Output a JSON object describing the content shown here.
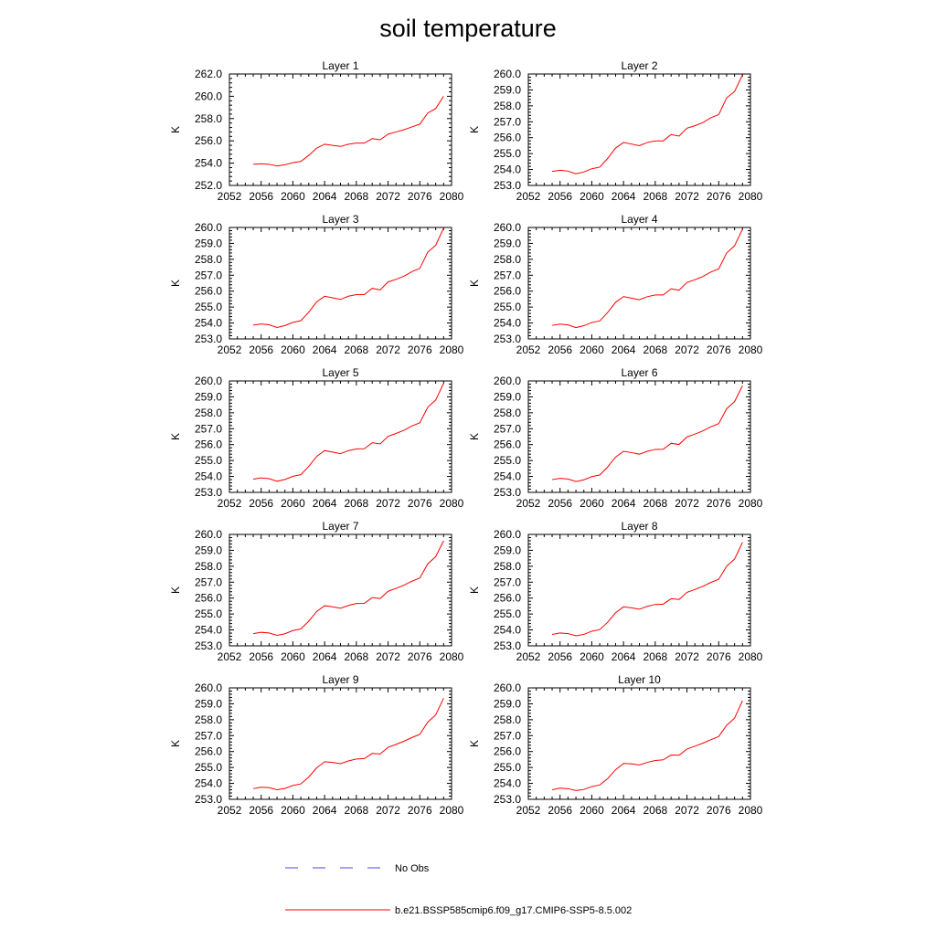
{
  "title": "soil temperature",
  "legend": [
    {
      "label": "No Obs",
      "color": "#4a4ad8",
      "style": "dashed"
    },
    {
      "label": "b.e21.BSSP585cmip6.f09_g17.CMIP6-SSP5-8.5.002",
      "color": "#ff0000",
      "style": "solid"
    }
  ],
  "chart_data": [
    {
      "type": "line",
      "title": "Layer 1",
      "ylabel": "K",
      "xlim": [
        2052,
        2080
      ],
      "ylim": [
        252,
        262
      ],
      "xticks": [
        "2052",
        "2056",
        "2060",
        "2064",
        "2068",
        "2072",
        "2076",
        "2080"
      ],
      "yticks": [
        "252.0",
        "254.0",
        "256.0",
        "258.0",
        "260.0",
        "262.0"
      ],
      "x": [
        2055,
        2056,
        2057,
        2058,
        2059,
        2060,
        2061,
        2062,
        2063,
        2064,
        2065,
        2066,
        2067,
        2068,
        2069,
        2070,
        2071,
        2072,
        2073,
        2074,
        2075,
        2076,
        2077,
        2078,
        2079
      ],
      "series": [
        {
          "name": "b.e21.BSSP585cmip6.f09_g17.CMIP6-SSP5-8.5.002",
          "values": [
            253.9,
            253.95,
            253.9,
            253.75,
            253.85,
            254.05,
            254.15,
            254.7,
            255.35,
            255.7,
            255.6,
            255.5,
            255.7,
            255.8,
            255.8,
            256.2,
            256.1,
            256.6,
            256.8,
            257.0,
            257.25,
            257.5,
            258.5,
            258.9,
            260.0
          ]
        }
      ]
    },
    {
      "type": "line",
      "title": "Layer 2",
      "ylabel": "K",
      "xlim": [
        2052,
        2080
      ],
      "ylim": [
        253,
        260
      ],
      "xticks": [
        "2052",
        "2056",
        "2060",
        "2064",
        "2068",
        "2072",
        "2076",
        "2080"
      ],
      "yticks": [
        "253.0",
        "254.0",
        "255.0",
        "256.0",
        "257.0",
        "258.0",
        "259.0",
        "260.0"
      ],
      "x": [
        2055,
        2056,
        2057,
        2058,
        2059,
        2060,
        2061,
        2062,
        2063,
        2064,
        2065,
        2066,
        2067,
        2068,
        2069,
        2070,
        2071,
        2072,
        2073,
        2074,
        2075,
        2076,
        2077,
        2078,
        2079
      ],
      "series": [
        {
          "name": "b.e21.BSSP585cmip6.f09_g17.CMIP6-SSP5-8.5.002",
          "values": [
            253.88,
            253.95,
            253.9,
            253.73,
            253.85,
            254.05,
            254.15,
            254.7,
            255.35,
            255.7,
            255.6,
            255.5,
            255.7,
            255.8,
            255.8,
            256.2,
            256.1,
            256.6,
            256.75,
            256.95,
            257.25,
            257.45,
            258.5,
            258.9,
            259.95
          ]
        }
      ]
    },
    {
      "type": "line",
      "title": "Layer 3",
      "ylabel": "K",
      "xlim": [
        2052,
        2080
      ],
      "ylim": [
        253,
        260
      ],
      "xticks": [
        "2052",
        "2056",
        "2060",
        "2064",
        "2068",
        "2072",
        "2076",
        "2080"
      ],
      "yticks": [
        "253.0",
        "254.0",
        "255.0",
        "256.0",
        "257.0",
        "258.0",
        "259.0",
        "260.0"
      ],
      "x": [
        2055,
        2056,
        2057,
        2058,
        2059,
        2060,
        2061,
        2062,
        2063,
        2064,
        2065,
        2066,
        2067,
        2068,
        2069,
        2070,
        2071,
        2072,
        2073,
        2074,
        2075,
        2076,
        2077,
        2078,
        2079
      ],
      "series": [
        {
          "name": "b.e21.BSSP585cmip6.f09_g17.CMIP6-SSP5-8.5.002",
          "values": [
            253.87,
            253.94,
            253.89,
            253.72,
            253.84,
            254.04,
            254.14,
            254.68,
            255.33,
            255.68,
            255.58,
            255.48,
            255.68,
            255.78,
            255.78,
            256.18,
            256.08,
            256.58,
            256.74,
            256.94,
            257.22,
            257.43,
            258.45,
            258.88,
            259.95
          ]
        }
      ]
    },
    {
      "type": "line",
      "title": "Layer 4",
      "ylabel": "K",
      "xlim": [
        2052,
        2080
      ],
      "ylim": [
        253,
        260
      ],
      "xticks": [
        "2052",
        "2056",
        "2060",
        "2064",
        "2068",
        "2072",
        "2076",
        "2080"
      ],
      "yticks": [
        "253.0",
        "254.0",
        "255.0",
        "256.0",
        "257.0",
        "258.0",
        "259.0",
        "260.0"
      ],
      "x": [
        2055,
        2056,
        2057,
        2058,
        2059,
        2060,
        2061,
        2062,
        2063,
        2064,
        2065,
        2066,
        2067,
        2068,
        2069,
        2070,
        2071,
        2072,
        2073,
        2074,
        2075,
        2076,
        2077,
        2078,
        2079
      ],
      "series": [
        {
          "name": "b.e21.BSSP585cmip6.f09_g17.CMIP6-SSP5-8.5.002",
          "values": [
            253.85,
            253.93,
            253.88,
            253.71,
            253.83,
            254.03,
            254.13,
            254.66,
            255.3,
            255.66,
            255.56,
            255.46,
            255.65,
            255.76,
            255.76,
            256.15,
            256.06,
            256.55,
            256.72,
            256.92,
            257.2,
            257.4,
            258.4,
            258.85,
            259.9
          ]
        }
      ]
    },
    {
      "type": "line",
      "title": "Layer 5",
      "ylabel": "K",
      "xlim": [
        2052,
        2080
      ],
      "ylim": [
        253,
        260
      ],
      "xticks": [
        "2052",
        "2056",
        "2060",
        "2064",
        "2068",
        "2072",
        "2076",
        "2080"
      ],
      "yticks": [
        "253.0",
        "254.0",
        "255.0",
        "256.0",
        "257.0",
        "258.0",
        "259.0",
        "260.0"
      ],
      "x": [
        2055,
        2056,
        2057,
        2058,
        2059,
        2060,
        2061,
        2062,
        2063,
        2064,
        2065,
        2066,
        2067,
        2068,
        2069,
        2070,
        2071,
        2072,
        2073,
        2074,
        2075,
        2076,
        2077,
        2078,
        2079
      ],
      "series": [
        {
          "name": "b.e21.BSSP585cmip6.f09_g17.CMIP6-SSP5-8.5.002",
          "values": [
            253.83,
            253.91,
            253.86,
            253.7,
            253.81,
            254.01,
            254.11,
            254.63,
            255.26,
            255.62,
            255.53,
            255.43,
            255.62,
            255.73,
            255.74,
            256.12,
            256.04,
            256.52,
            256.7,
            256.9,
            257.17,
            257.37,
            258.35,
            258.8,
            259.85
          ]
        }
      ]
    },
    {
      "type": "line",
      "title": "Layer 6",
      "ylabel": "K",
      "xlim": [
        2052,
        2080
      ],
      "ylim": [
        253,
        260
      ],
      "xticks": [
        "2052",
        "2056",
        "2060",
        "2064",
        "2068",
        "2072",
        "2076",
        "2080"
      ],
      "yticks": [
        "253.0",
        "254.0",
        "255.0",
        "256.0",
        "257.0",
        "258.0",
        "259.0",
        "260.0"
      ],
      "x": [
        2055,
        2056,
        2057,
        2058,
        2059,
        2060,
        2061,
        2062,
        2063,
        2064,
        2065,
        2066,
        2067,
        2068,
        2069,
        2070,
        2071,
        2072,
        2073,
        2074,
        2075,
        2076,
        2077,
        2078,
        2079
      ],
      "series": [
        {
          "name": "b.e21.BSSP585cmip6.f09_g17.CMIP6-SSP5-8.5.002",
          "values": [
            253.8,
            253.88,
            253.84,
            253.68,
            253.79,
            253.99,
            254.09,
            254.6,
            255.22,
            255.58,
            255.5,
            255.4,
            255.58,
            255.7,
            255.71,
            256.08,
            256.01,
            256.48,
            256.66,
            256.86,
            257.12,
            257.32,
            258.25,
            258.7,
            259.7
          ]
        }
      ]
    },
    {
      "type": "line",
      "title": "Layer 7",
      "ylabel": "K",
      "xlim": [
        2052,
        2080
      ],
      "ylim": [
        253,
        260
      ],
      "xticks": [
        "2052",
        "2056",
        "2060",
        "2064",
        "2068",
        "2072",
        "2076",
        "2080"
      ],
      "yticks": [
        "253.0",
        "254.0",
        "255.0",
        "256.0",
        "257.0",
        "258.0",
        "259.0",
        "260.0"
      ],
      "x": [
        2055,
        2056,
        2057,
        2058,
        2059,
        2060,
        2061,
        2062,
        2063,
        2064,
        2065,
        2066,
        2067,
        2068,
        2069,
        2070,
        2071,
        2072,
        2073,
        2074,
        2075,
        2076,
        2077,
        2078,
        2079
      ],
      "series": [
        {
          "name": "b.e21.BSSP585cmip6.f09_g17.CMIP6-SSP5-8.5.002",
          "values": [
            253.77,
            253.85,
            253.81,
            253.66,
            253.76,
            253.96,
            254.06,
            254.55,
            255.16,
            255.52,
            255.45,
            255.36,
            255.54,
            255.66,
            255.67,
            256.03,
            255.97,
            256.43,
            256.61,
            256.81,
            257.06,
            257.26,
            258.15,
            258.6,
            259.6
          ]
        }
      ]
    },
    {
      "type": "line",
      "title": "Layer 8",
      "ylabel": "K",
      "xlim": [
        2052,
        2080
      ],
      "ylim": [
        253,
        260
      ],
      "xticks": [
        "2052",
        "2056",
        "2060",
        "2064",
        "2068",
        "2072",
        "2076",
        "2080"
      ],
      "yticks": [
        "253.0",
        "254.0",
        "255.0",
        "256.0",
        "257.0",
        "258.0",
        "259.0",
        "260.0"
      ],
      "x": [
        2055,
        2056,
        2057,
        2058,
        2059,
        2060,
        2061,
        2062,
        2063,
        2064,
        2065,
        2066,
        2067,
        2068,
        2069,
        2070,
        2071,
        2072,
        2073,
        2074,
        2075,
        2076,
        2077,
        2078,
        2079
      ],
      "series": [
        {
          "name": "b.e21.BSSP585cmip6.f09_g17.CMIP6-SSP5-8.5.002",
          "values": [
            253.72,
            253.81,
            253.77,
            253.63,
            253.72,
            253.92,
            254.02,
            254.48,
            255.08,
            255.45,
            255.39,
            255.3,
            255.48,
            255.6,
            255.62,
            255.96,
            255.91,
            256.36,
            256.54,
            256.74,
            256.98,
            257.18,
            258.0,
            258.45,
            259.5
          ]
        }
      ]
    },
    {
      "type": "line",
      "title": "Layer 9",
      "ylabel": "K",
      "xlim": [
        2052,
        2080
      ],
      "ylim": [
        253,
        260
      ],
      "xticks": [
        "2052",
        "2056",
        "2060",
        "2064",
        "2068",
        "2072",
        "2076",
        "2080"
      ],
      "yticks": [
        "253.0",
        "254.0",
        "255.0",
        "256.0",
        "257.0",
        "258.0",
        "259.0",
        "260.0"
      ],
      "x": [
        2055,
        2056,
        2057,
        2058,
        2059,
        2060,
        2061,
        2062,
        2063,
        2064,
        2065,
        2066,
        2067,
        2068,
        2069,
        2070,
        2071,
        2072,
        2073,
        2074,
        2075,
        2076,
        2077,
        2078,
        2079
      ],
      "series": [
        {
          "name": "b.e21.BSSP585cmip6.f09_g17.CMIP6-SSP5-8.5.002",
          "values": [
            253.67,
            253.76,
            253.73,
            253.6,
            253.68,
            253.87,
            253.97,
            254.4,
            254.98,
            255.36,
            255.32,
            255.24,
            255.41,
            255.53,
            255.56,
            255.88,
            255.85,
            256.27,
            256.45,
            256.65,
            256.88,
            257.08,
            257.85,
            258.3,
            259.35
          ]
        }
      ]
    },
    {
      "type": "line",
      "title": "Layer 10",
      "ylabel": "K",
      "xlim": [
        2052,
        2080
      ],
      "ylim": [
        253,
        260
      ],
      "xticks": [
        "2052",
        "2056",
        "2060",
        "2064",
        "2068",
        "2072",
        "2076",
        "2080"
      ],
      "yticks": [
        "253.0",
        "254.0",
        "255.0",
        "256.0",
        "257.0",
        "258.0",
        "259.0",
        "260.0"
      ],
      "x": [
        2055,
        2056,
        2057,
        2058,
        2059,
        2060,
        2061,
        2062,
        2063,
        2064,
        2065,
        2066,
        2067,
        2068,
        2069,
        2070,
        2071,
        2072,
        2073,
        2074,
        2075,
        2076,
        2077,
        2078,
        2079
      ],
      "series": [
        {
          "name": "b.e21.BSSP585cmip6.f09_g17.CMIP6-SSP5-8.5.002",
          "values": [
            253.6,
            253.7,
            253.67,
            253.55,
            253.62,
            253.8,
            253.9,
            254.3,
            254.86,
            255.25,
            255.23,
            255.16,
            255.32,
            255.44,
            255.48,
            255.78,
            255.77,
            256.16,
            256.34,
            256.53,
            256.74,
            256.95,
            257.65,
            258.1,
            259.2
          ]
        }
      ]
    }
  ]
}
